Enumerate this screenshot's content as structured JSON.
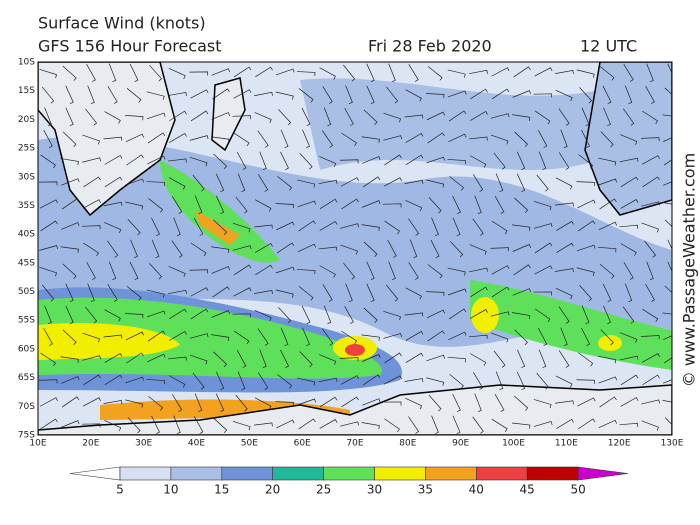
{
  "header": {
    "title": "Surface Wind (knots)",
    "subtitle": "GFS 156 Hour Forecast",
    "date": "Fri 28 Feb 2020",
    "time": "12 UTC"
  },
  "map": {
    "latitude_labels": [
      "10S",
      "15S",
      "20S",
      "25S",
      "30S",
      "35S",
      "40S",
      "45S",
      "50S",
      "55S",
      "60S",
      "65S",
      "70S",
      "75S"
    ],
    "longitude_labels": [
      "10E",
      "20E",
      "30E",
      "40E",
      "50E",
      "60E",
      "70E",
      "80E",
      "90E",
      "100E",
      "110E",
      "120E",
      "130E"
    ],
    "credit": "© www.PassageWeather.com"
  },
  "colorbar": {
    "ticks": [
      5,
      10,
      15,
      20,
      25,
      30,
      35,
      40,
      45,
      50
    ],
    "colors": [
      "#ffffff",
      "#d6e0f2",
      "#a9bfe6",
      "#6e93d8",
      "#22b89a",
      "#5fe05a",
      "#f2ee00",
      "#f2a21e",
      "#ee4040",
      "#c00000",
      "#cc00cc"
    ]
  }
}
